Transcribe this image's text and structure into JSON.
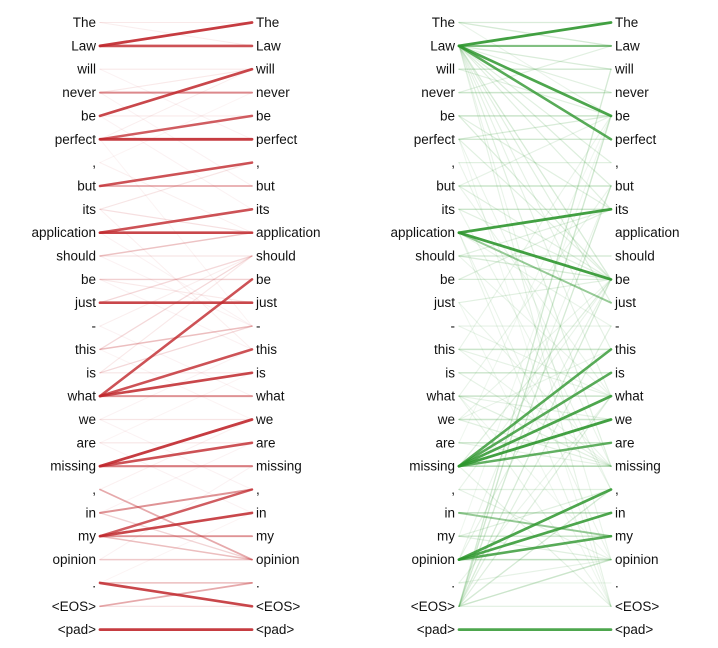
{
  "figure": {
    "name": "attention-alignment-visualization",
    "background": "#ffffff",
    "text_color": "#111111"
  },
  "chart_data": {
    "type": "bipartite-attention",
    "description": "Two token-to-token attention line panels; identical token list on left and right columns of each panel; line opacity encodes attention weight",
    "tokens": [
      "The",
      "Law",
      "will",
      "never",
      "be",
      "perfect",
      ",",
      "but",
      "its",
      "application",
      "should",
      "be",
      "just",
      "-",
      "this",
      "is",
      "what",
      "we",
      "are",
      "missing",
      ",",
      "in",
      "my",
      "opinion",
      ".",
      "<EOS>",
      "<pad>"
    ],
    "panels": [
      {
        "name": "red-attention-panel",
        "color": "#c0272c",
        "edges": [
          [
            1,
            1,
            0.1
          ],
          [
            1,
            2,
            0.08
          ],
          [
            3,
            3,
            0.1
          ],
          [
            3,
            6,
            0.06
          ],
          [
            4,
            3,
            0.1
          ],
          [
            4,
            8,
            0.06
          ],
          [
            5,
            5,
            0.1
          ],
          [
            5,
            9,
            0.06
          ],
          [
            6,
            3,
            0.08
          ],
          [
            6,
            14,
            0.05
          ],
          [
            7,
            4,
            0.05
          ],
          [
            7,
            10,
            0.07
          ],
          [
            9,
            7,
            0.12
          ],
          [
            9,
            10,
            0.15
          ],
          [
            9,
            15,
            0.07
          ],
          [
            10,
            14,
            0.06
          ],
          [
            11,
            11,
            0.12
          ],
          [
            11,
            14,
            0.06
          ],
          [
            12,
            13,
            0.1
          ],
          [
            12,
            15,
            0.06
          ],
          [
            14,
            11,
            0.08
          ],
          [
            14,
            17,
            0.06
          ],
          [
            15,
            18,
            0.05
          ],
          [
            16,
            14,
            0.18
          ],
          [
            16,
            11,
            0.1
          ],
          [
            16,
            16,
            0.12
          ],
          [
            18,
            15,
            0.06
          ],
          [
            18,
            18,
            0.12
          ],
          [
            18,
            21,
            0.06
          ],
          [
            19,
            16,
            0.05
          ],
          [
            19,
            19,
            0.12
          ],
          [
            19,
            22,
            0.06
          ],
          [
            21,
            18,
            0.07
          ],
          [
            22,
            19,
            0.06
          ],
          [
            22,
            24,
            0.2
          ],
          [
            24,
            20,
            0.06
          ],
          [
            25,
            22,
            0.05
          ],
          [
            26,
            26,
            0.15
          ],
          [
            2,
            1,
            0.9
          ],
          [
            2,
            2,
            0.8
          ],
          [
            4,
            4,
            0.55
          ],
          [
            5,
            3,
            0.85
          ],
          [
            6,
            5,
            0.75
          ],
          [
            6,
            6,
            0.9
          ],
          [
            8,
            7,
            0.8
          ],
          [
            8,
            8,
            0.4
          ],
          [
            10,
            9,
            0.8
          ],
          [
            10,
            10,
            0.85
          ],
          [
            11,
            10,
            0.28
          ],
          [
            12,
            12,
            0.22
          ],
          [
            13,
            11,
            0.18
          ],
          [
            13,
            13,
            0.85
          ],
          [
            15,
            11,
            0.18
          ],
          [
            15,
            14,
            0.3
          ],
          [
            17,
            12,
            0.8
          ],
          [
            17,
            15,
            0.8
          ],
          [
            17,
            16,
            0.85
          ],
          [
            17,
            17,
            0.5
          ],
          [
            20,
            18,
            0.9
          ],
          [
            20,
            19,
            0.8
          ],
          [
            20,
            20,
            0.6
          ],
          [
            21,
            24,
            0.4
          ],
          [
            22,
            21,
            0.5
          ],
          [
            23,
            21,
            0.75
          ],
          [
            23,
            22,
            0.85
          ],
          [
            23,
            23,
            0.5
          ],
          [
            23,
            24,
            0.3
          ],
          [
            24,
            24,
            0.25
          ],
          [
            25,
            25,
            0.3
          ],
          [
            25,
            26,
            0.85
          ],
          [
            26,
            25,
            0.4
          ],
          [
            27,
            27,
            0.9
          ]
        ]
      },
      {
        "name": "green-attention-panel",
        "color": "#2e962e",
        "edges": [
          [
            1,
            1,
            0.18
          ],
          [
            1,
            2,
            0.2
          ],
          [
            1,
            5,
            0.1
          ],
          [
            2,
            3,
            0.18
          ],
          [
            2,
            4,
            0.14
          ],
          [
            2,
            7,
            0.14
          ],
          [
            2,
            8,
            0.16
          ],
          [
            2,
            9,
            0.14
          ],
          [
            2,
            12,
            0.18
          ],
          [
            2,
            13,
            0.14
          ],
          [
            2,
            15,
            0.12
          ],
          [
            2,
            17,
            0.12
          ],
          [
            2,
            20,
            0.14
          ],
          [
            2,
            24,
            0.1
          ],
          [
            2,
            26,
            0.12
          ],
          [
            3,
            3,
            0.22
          ],
          [
            3,
            5,
            0.14
          ],
          [
            4,
            2,
            0.14
          ],
          [
            4,
            4,
            0.25
          ],
          [
            5,
            5,
            0.25
          ],
          [
            5,
            9,
            0.14
          ],
          [
            5,
            12,
            0.16
          ],
          [
            6,
            5,
            0.18
          ],
          [
            6,
            6,
            0.22
          ],
          [
            6,
            12,
            0.14
          ],
          [
            6,
            20,
            0.1
          ],
          [
            6,
            26,
            0.08
          ],
          [
            7,
            7,
            0.14
          ],
          [
            7,
            21,
            0.1
          ],
          [
            8,
            5,
            0.12
          ],
          [
            8,
            8,
            0.25
          ],
          [
            8,
            12,
            0.14
          ],
          [
            8,
            17,
            0.1
          ],
          [
            9,
            9,
            0.25
          ],
          [
            9,
            12,
            0.14
          ],
          [
            9,
            21,
            0.1
          ],
          [
            10,
            14,
            0.1
          ],
          [
            10,
            24,
            0.1
          ],
          [
            10,
            26,
            0.1
          ],
          [
            11,
            9,
            0.14
          ],
          [
            11,
            11,
            0.22
          ],
          [
            11,
            12,
            0.18
          ],
          [
            11,
            17,
            0.1
          ],
          [
            12,
            9,
            0.14
          ],
          [
            12,
            12,
            0.18
          ],
          [
            13,
            12,
            0.14
          ],
          [
            13,
            20,
            0.1
          ],
          [
            13,
            26,
            0.08
          ],
          [
            14,
            14,
            0.12
          ],
          [
            14,
            17,
            0.1
          ],
          [
            15,
            5,
            0.1
          ],
          [
            15,
            15,
            0.25
          ],
          [
            15,
            17,
            0.12
          ],
          [
            15,
            20,
            0.1
          ],
          [
            16,
            16,
            0.25
          ],
          [
            16,
            20,
            0.12
          ],
          [
            17,
            8,
            0.1
          ],
          [
            17,
            17,
            0.25
          ],
          [
            17,
            18,
            0.12
          ],
          [
            17,
            20,
            0.14
          ],
          [
            17,
            24,
            0.08
          ],
          [
            17,
            26,
            0.1
          ],
          [
            18,
            12,
            0.1
          ],
          [
            18,
            15,
            0.1
          ],
          [
            18,
            18,
            0.25
          ],
          [
            18,
            20,
            0.14
          ],
          [
            19,
            5,
            0.08
          ],
          [
            19,
            19,
            0.25
          ],
          [
            19,
            20,
            0.12
          ],
          [
            20,
            12,
            0.15
          ],
          [
            20,
            26,
            0.12
          ],
          [
            21,
            12,
            0.1
          ],
          [
            21,
            21,
            0.14
          ],
          [
            21,
            24,
            0.12
          ],
          [
            23,
            5,
            0.08
          ],
          [
            23,
            21,
            0.14
          ],
          [
            23,
            23,
            0.25
          ],
          [
            23,
            24,
            0.14
          ],
          [
            24,
            8,
            0.1
          ],
          [
            24,
            12,
            0.12
          ],
          [
            25,
            17,
            0.1
          ],
          [
            25,
            24,
            0.12
          ],
          [
            25,
            25,
            0.1
          ],
          [
            26,
            3,
            0.2
          ],
          [
            26,
            5,
            0.22
          ],
          [
            26,
            8,
            0.2
          ],
          [
            26,
            12,
            0.18
          ],
          [
            26,
            14,
            0.14
          ],
          [
            26,
            17,
            0.15
          ],
          [
            26,
            21,
            0.2
          ],
          [
            26,
            24,
            0.25
          ],
          [
            26,
            26,
            0.15
          ],
          [
            2,
            1,
            0.9
          ],
          [
            2,
            2,
            0.6
          ],
          [
            2,
            5,
            0.85
          ],
          [
            2,
            6,
            0.8
          ],
          [
            10,
            9,
            0.9
          ],
          [
            10,
            12,
            0.9
          ],
          [
            10,
            13,
            0.5
          ],
          [
            20,
            15,
            0.8
          ],
          [
            20,
            16,
            0.8
          ],
          [
            20,
            17,
            0.85
          ],
          [
            20,
            18,
            0.9
          ],
          [
            20,
            19,
            0.75
          ],
          [
            20,
            20,
            0.35
          ],
          [
            22,
            22,
            0.3
          ],
          [
            22,
            23,
            0.5
          ],
          [
            24,
            21,
            0.85
          ],
          [
            24,
            22,
            0.85
          ],
          [
            24,
            23,
            0.8
          ],
          [
            24,
            24,
            0.3
          ],
          [
            27,
            27,
            0.85
          ]
        ]
      }
    ],
    "layout_hints": {
      "legend": "none",
      "axes": "none",
      "left_column_anchor": "right-aligned",
      "right_column_anchor": "left-aligned"
    }
  }
}
